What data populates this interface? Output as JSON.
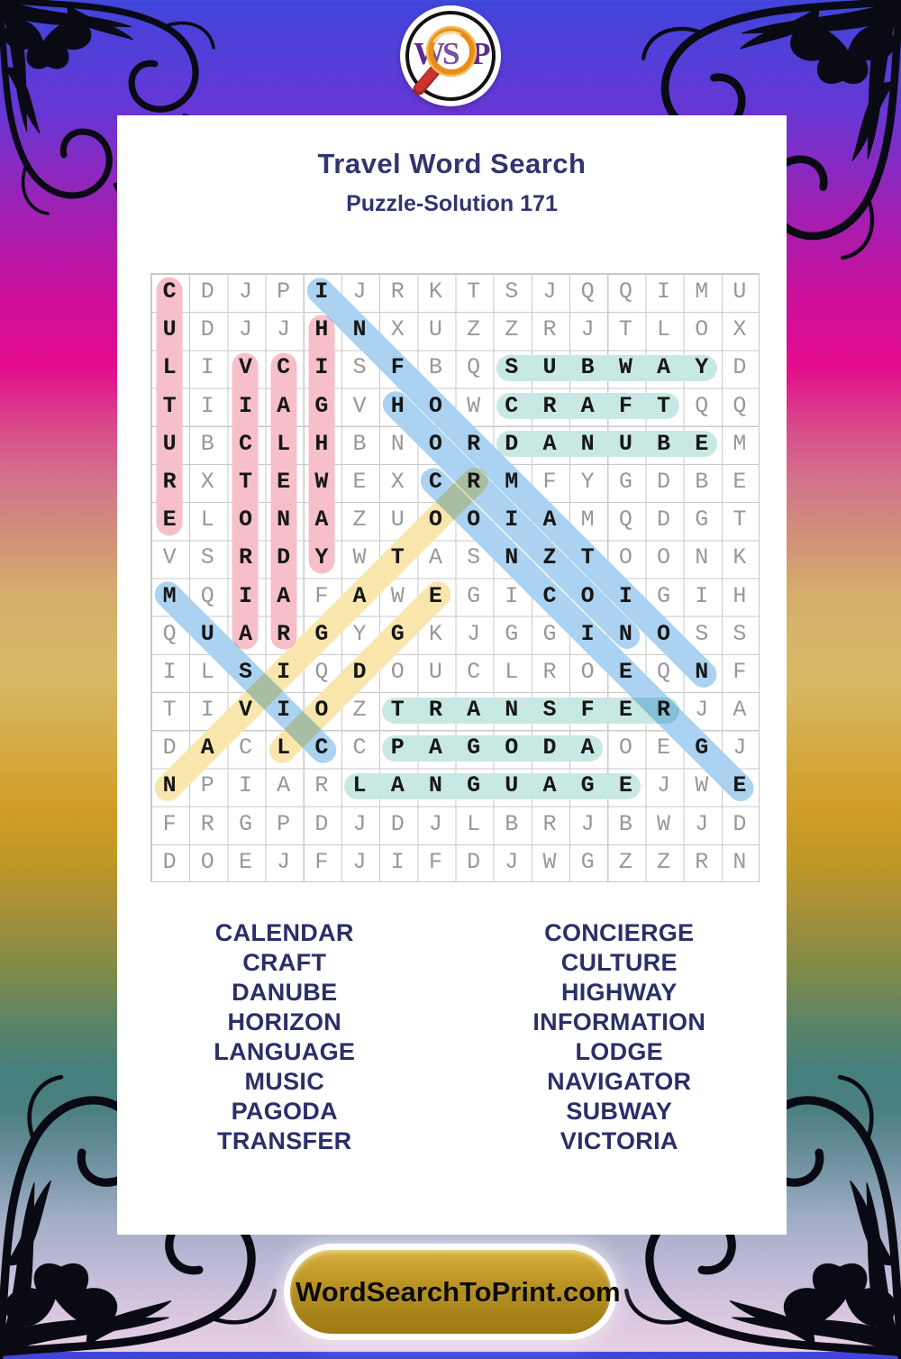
{
  "page": {
    "title": "Travel Word Search",
    "subtitle": "Puzzle-Solution 171",
    "site_button": "WordSearchToPrint.com",
    "logo_letters": [
      "W",
      "S",
      "P"
    ]
  },
  "colors": {
    "heading_navy": "#31356f",
    "word_list_navy": "#2b2f68",
    "highlight_pink": "#f6bfca",
    "highlight_blue": "#abd3f1",
    "highlight_yellow": "#f9e6ad",
    "highlight_teal": "#c8e8e4",
    "grid_line_gray": "#c9c9c9",
    "letter_gray": "#97989a",
    "letter_black": "#161616",
    "button_gold": "#b8921f",
    "logo_purple": "#5c2b8e",
    "magnifier_orange": "#f09a1d",
    "magnifier_handle_red": "#c9302c"
  },
  "grid": {
    "rows": 16,
    "cols": 16,
    "letters": [
      "CDJPIJRKTSJQQIMU",
      "UDJJHNXUZZRJTLOX",
      "LIVCISFBQSUBWAYD",
      "TIIAGVHOWCRAFTQQ",
      "UBCLHBNORDANUBEM",
      "RXTEWEXCRMFYGDBE",
      "ELONAZUOOIAMQDGT",
      "VSRDYWTASNZTOONK",
      "MQIAFAWEGICOIGIH",
      "QUARGYGKJGGINOSS",
      "ILSIQDOUCLROEQNF",
      "TIVIOZTRANSFERJA",
      "DACLCCPAGODAOEGJ",
      "NPIARLANGUAGEJWE",
      "FRGPDJDJLBRJBWJD",
      "DOEJFJIFDJWGZZRN"
    ],
    "solutions": [
      {
        "word": "CULTURE",
        "row": 1,
        "col": 1,
        "dir": "down",
        "color": "pink"
      },
      {
        "word": "HIGHWAY",
        "row": 2,
        "col": 5,
        "dir": "down",
        "color": "pink"
      },
      {
        "word": "VICTORIA",
        "row": 3,
        "col": 3,
        "dir": "down",
        "color": "pink"
      },
      {
        "word": "CALENDAR",
        "row": 3,
        "col": 4,
        "dir": "down",
        "color": "pink"
      },
      {
        "word": "SUBWAY",
        "row": 3,
        "col": 10,
        "dir": "right",
        "color": "teal"
      },
      {
        "word": "CRAFT",
        "row": 4,
        "col": 10,
        "dir": "right",
        "color": "teal"
      },
      {
        "word": "DANUBE",
        "row": 5,
        "col": 10,
        "dir": "right",
        "color": "teal"
      },
      {
        "word": "TRANSFER",
        "row": 12,
        "col": 7,
        "dir": "right",
        "color": "teal"
      },
      {
        "word": "PAGODA",
        "row": 13,
        "col": 7,
        "dir": "right",
        "color": "teal"
      },
      {
        "word": "LANGUAGE",
        "row": 14,
        "col": 6,
        "dir": "right",
        "color": "teal"
      },
      {
        "word": "INFORMATION",
        "row": 1,
        "col": 5,
        "dir": "down-right",
        "color": "blue"
      },
      {
        "word": "HORIZON",
        "row": 4,
        "col": 7,
        "dir": "down-right",
        "color": "blue"
      },
      {
        "word": "CONCIERGE",
        "row": 6,
        "col": 8,
        "dir": "down-right",
        "color": "blue"
      },
      {
        "word": "MUSIC",
        "row": 9,
        "col": 1,
        "dir": "down-right",
        "color": "blue"
      },
      {
        "word": "LODGE",
        "row": 13,
        "col": 4,
        "dir": "up-right",
        "color": "yellow"
      },
      {
        "word": "NAVIGATOR",
        "row": 14,
        "col": 1,
        "dir": "up-right",
        "color": "yellow"
      }
    ]
  },
  "word_list": {
    "left": [
      "CALENDAR",
      "CRAFT",
      "DANUBE",
      "HORIZON",
      "LANGUAGE",
      "MUSIC",
      "PAGODA",
      "TRANSFER"
    ],
    "right": [
      "CONCIERGE",
      "CULTURE",
      "HIGHWAY",
      "INFORMATION",
      "LODGE",
      "NAVIGATOR",
      "SUBWAY",
      "VICTORIA"
    ]
  }
}
